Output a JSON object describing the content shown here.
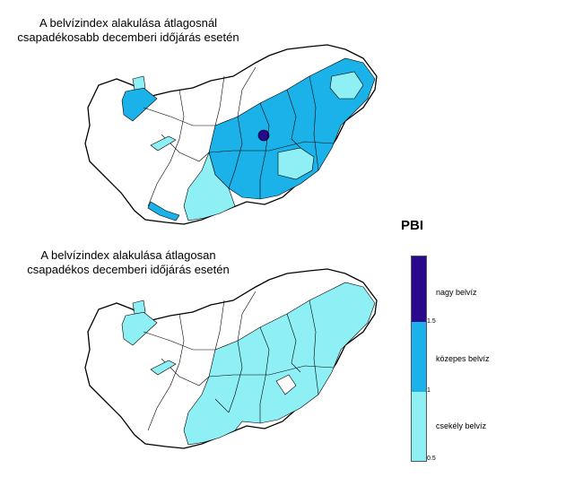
{
  "maps": {
    "top": {
      "title_line1": "A belvízindex alakulása átlagosnál",
      "title_line2": "csapadékosabb decemberi időjárás esetén"
    },
    "bottom": {
      "title_line1": "A belvízindex alakulása átlagosan",
      "title_line2": "csapadékos decemberi időjárás esetén"
    }
  },
  "legend": {
    "title": "PBI",
    "categories": [
      {
        "label": "nagy belvíz",
        "from": 1.5,
        "to": 2.0,
        "color": "#2a0a8c"
      },
      {
        "label": "közepes belvíz",
        "from": 1.0,
        "to": 1.5,
        "color": "#1ab2e8"
      },
      {
        "label": "csekély belvíz",
        "from": 0.5,
        "to": 1.0,
        "color": "#8ef0f5"
      }
    ],
    "ticks": [
      "1.5",
      "1",
      "0.5"
    ]
  },
  "colors": {
    "outline": "#000000",
    "none": "#ffffff",
    "low": "#8ef0f5",
    "medium": "#1ab2e8",
    "high": "#2a0a8c"
  }
}
